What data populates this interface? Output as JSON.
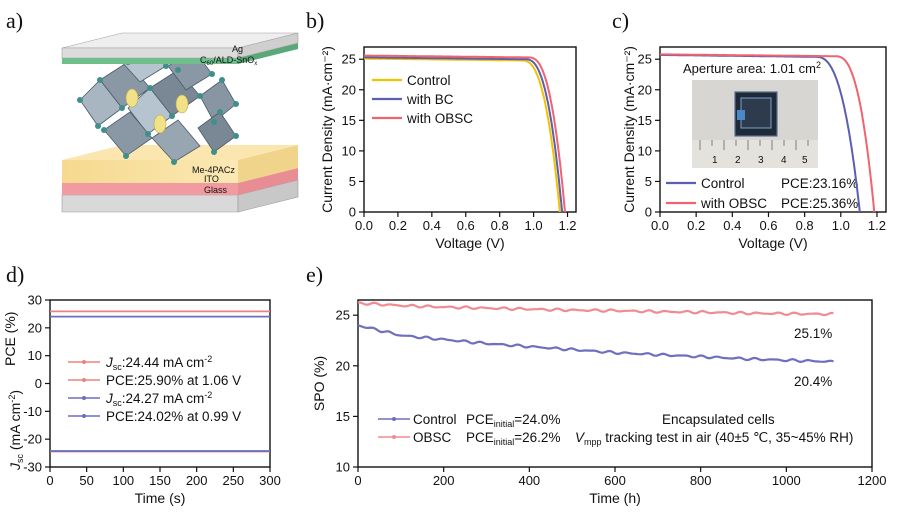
{
  "panels": {
    "a": "a)",
    "b": "b)",
    "c": "c)",
    "d": "d)",
    "e": "e)"
  },
  "colors": {
    "control": "#f2c200",
    "bc": "#5b5fb0",
    "obsc": "#f0646e",
    "d_control_line": "#ee8080",
    "d_bc_line": "#6b6fc0",
    "e_control": "#6e6fbf",
    "e_obsc": "#f08b92"
  },
  "schematic": {
    "layer_top": "Ag",
    "layer_etl_pre": "C",
    "layer_etl_sub": "60",
    "layer_etl_post": "/ALD-SnO",
    "layer_etl_sub2": "x",
    "layer_sam": "Me-4PACz",
    "layer_ito": "ITO",
    "layer_glass": "Glass"
  },
  "inset_c": {
    "label_pre": "Aperture area: 1.01 cm",
    "label_sup": "2",
    "ruler": [
      "1",
      "2",
      "3",
      "4",
      "5"
    ]
  },
  "pce_text_c": [
    "PCE:23.16%",
    "PCE:25.36%"
  ],
  "d_legend": {
    "jsc1_pre": "J",
    "jsc1_sub": "sc",
    "jsc1_post": ":24.44 mA cm",
    "jsc1_sup": "-2",
    "pce1": "PCE:25.90% at 1.06 V",
    "jsc2_pre": "J",
    "jsc2_sub": "sc",
    "jsc2_post": ":24.27 mA cm",
    "jsc2_sup": "-2",
    "pce2": "PCE:24.02% at 0.99 V"
  },
  "d_ylabel_top": "PCE (%)",
  "d_ylabel_bottom_pre": "J",
  "d_ylabel_bottom_sub": "sc",
  "d_ylabel_bottom_post": " (mA cm",
  "d_ylabel_bottom_sup": "-2",
  "d_ylabel_bottom_end": ")",
  "e_legend": {
    "control": "Control",
    "obsc": "OBSC",
    "pce_pre": "PCE",
    "pce_sub": "initial",
    "control_val": "=24.0%",
    "obsc_val": "=26.2%"
  },
  "e_note": {
    "line1": "Encapsulated cells",
    "line2_v": "V",
    "line2_sub": "mpp",
    "line2_rest": " tracking test in air (40±5 ℃, 35~45% RH)"
  },
  "e_end_labels": [
    "25.1%",
    "20.4%"
  ],
  "chart_data": [
    {
      "type": "line",
      "panel": "b",
      "xlabel": "Voltage (V)",
      "ylabel": "Current Density (mA·cm⁻²)",
      "xlim": [
        0.0,
        1.25
      ],
      "ylim": [
        0,
        27
      ],
      "xticks": [
        0.0,
        0.2,
        0.4,
        0.6,
        0.8,
        1.0,
        1.2
      ],
      "yticks": [
        0,
        5,
        10,
        15,
        20,
        25
      ],
      "legend_position": "top-right",
      "series": [
        {
          "name": "Control",
          "jsc": 25.1,
          "voc": 1.155,
          "knee": 0.93
        },
        {
          "name": "with BC",
          "jsc": 25.3,
          "voc": 1.168,
          "knee": 0.95
        },
        {
          "name": "with OBSC",
          "jsc": 25.6,
          "voc": 1.185,
          "knee": 0.97
        }
      ]
    },
    {
      "type": "line",
      "panel": "c",
      "xlabel": "Voltage (V)",
      "ylabel": "Current Density (mA·cm⁻²)",
      "xlim": [
        0.0,
        1.25
      ],
      "ylim": [
        0,
        27
      ],
      "xticks": [
        0.0,
        0.2,
        0.4,
        0.6,
        0.8,
        1.0,
        1.2
      ],
      "yticks": [
        0,
        5,
        10,
        15,
        20,
        25
      ],
      "legend_position": "bottom-left",
      "series": [
        {
          "name": "Control",
          "jsc": 25.7,
          "voc": 1.105,
          "knee": 0.86,
          "pce": "23.16%"
        },
        {
          "name": "with OBSC",
          "jsc": 25.8,
          "voc": 1.185,
          "knee": 0.97,
          "pce": "25.36%"
        }
      ]
    },
    {
      "type": "line",
      "panel": "d",
      "xlabel": "Time (s)",
      "xlim": [
        0,
        300
      ],
      "ylim": [
        -30,
        30
      ],
      "xticks": [
        0,
        50,
        100,
        150,
        200,
        250,
        300
      ],
      "yticks": [
        -30,
        -20,
        -10,
        0,
        10,
        20,
        30
      ],
      "legend_position": "center-left",
      "series": [
        {
          "name": "Jsc:24.44 mA cm-2",
          "value": -24.44
        },
        {
          "name": "PCE:25.90% at 1.06 V",
          "value": 25.9
        },
        {
          "name": "Jsc:24.27 mA cm-2",
          "value": -24.27
        },
        {
          "name": "PCE:24.02% at 0.99 V",
          "value": 24.02
        }
      ]
    },
    {
      "type": "line",
      "panel": "e",
      "xlabel": "Time (h)",
      "ylabel": "SPO (%)",
      "xlim": [
        0,
        1200
      ],
      "ylim": [
        10,
        26.5
      ],
      "xticks": [
        0,
        200,
        400,
        600,
        800,
        1000,
        1200
      ],
      "yticks": [
        10,
        15,
        20,
        25
      ],
      "legend_position": "bottom-left",
      "series": [
        {
          "name": "Control",
          "x": [
            0,
            100,
            200,
            300,
            400,
            500,
            600,
            700,
            800,
            900,
            1000,
            1110
          ],
          "y": [
            24.0,
            23.0,
            22.6,
            22.2,
            21.9,
            21.6,
            21.3,
            21.1,
            20.9,
            20.7,
            20.55,
            20.4
          ]
        },
        {
          "name": "OBSC",
          "x": [
            0,
            100,
            200,
            300,
            400,
            500,
            600,
            700,
            800,
            900,
            1000,
            1110
          ],
          "y": [
            26.2,
            25.95,
            25.8,
            25.7,
            25.6,
            25.5,
            25.45,
            25.35,
            25.3,
            25.2,
            25.15,
            25.1
          ]
        }
      ]
    }
  ]
}
